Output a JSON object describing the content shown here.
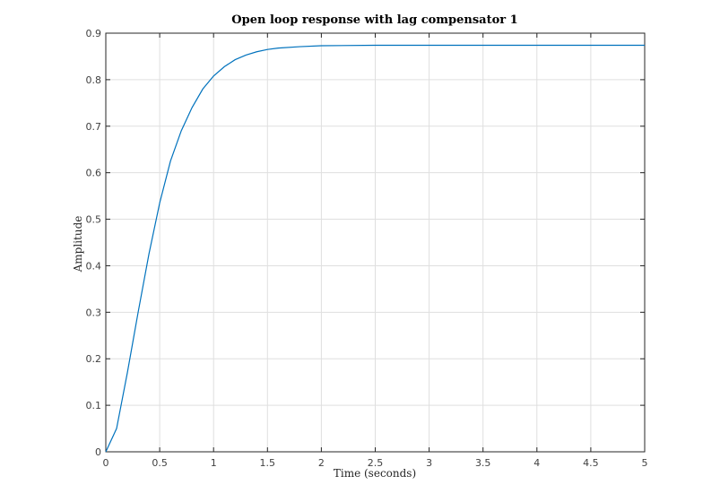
{
  "chart_data": {
    "type": "line",
    "title": "Open loop response with lag compensator 1",
    "xlabel": "Time (seconds)",
    "ylabel": "Amplitude",
    "xlim": [
      0,
      5
    ],
    "ylim": [
      0,
      0.9
    ],
    "grid": true,
    "x_ticks": [
      "0",
      "0.5",
      "1",
      "1.5",
      "2",
      "2.5",
      "3",
      "3.5",
      "4",
      "4.5",
      "5"
    ],
    "y_ticks": [
      "0",
      "0.1",
      "0.2",
      "0.3",
      "0.4",
      "0.5",
      "0.6",
      "0.7",
      "0.8",
      "0.9"
    ],
    "series": [
      {
        "color": "#0072bd",
        "x": [
          0,
          0.1,
          0.2,
          0.3,
          0.4,
          0.5,
          0.6,
          0.7,
          0.8,
          0.9,
          1.0,
          1.1,
          1.2,
          1.3,
          1.4,
          1.5,
          1.6,
          1.8,
          2.0,
          2.5,
          3.0,
          3.5,
          4.0,
          4.5,
          5.0
        ],
        "y": [
          0,
          0.05,
          0.17,
          0.3,
          0.425,
          0.535,
          0.625,
          0.69,
          0.74,
          0.78,
          0.808,
          0.828,
          0.843,
          0.853,
          0.86,
          0.865,
          0.868,
          0.871,
          0.873,
          0.874,
          0.874,
          0.874,
          0.874,
          0.874,
          0.874
        ]
      }
    ]
  }
}
